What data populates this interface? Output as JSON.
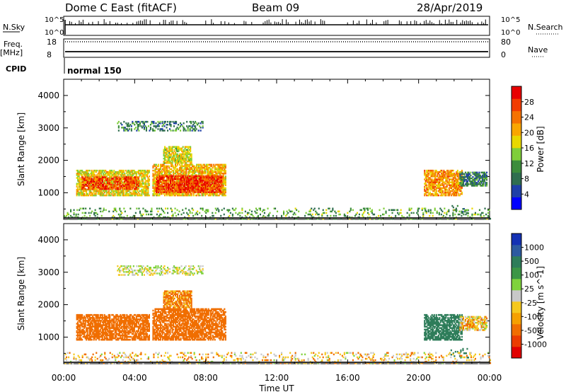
{
  "header": {
    "station": "Dome C East (fitACF)",
    "beam": "Beam 09",
    "date": "28/Apr/2019"
  },
  "top_panels": {
    "nsky_label": "N.Sky",
    "nsky_ticks": [
      "10^5",
      "10^0"
    ],
    "nsearch_label": "N.Search",
    "nsearch_ticks": [
      "10^5",
      "10^0"
    ],
    "freq_label": "Freq.",
    "freq_unit": "[MHz]",
    "freq_ticks": [
      "18",
      "8"
    ],
    "nave_label": "Nave",
    "nave_ticks": [
      "80",
      "0"
    ],
    "cpid_label": "CPID",
    "cpid_text": "normal 150"
  },
  "x_axis": {
    "label": "Time UT",
    "ticks": [
      "00:00",
      "04:00",
      "08:00",
      "12:00",
      "16:00",
      "20:00",
      "00:00"
    ],
    "range_hours": [
      0,
      24
    ]
  },
  "colors": {
    "power_scale": [
      "#0000ff",
      "#1e3fa8",
      "#2f6e4f",
      "#3c8c3c",
      "#7fce3a",
      "#e8d800",
      "#f9a600",
      "#f57200",
      "#f23c00",
      "#e80000"
    ],
    "velocity_scale": [
      "#1431b4",
      "#2d5aa0",
      "#2e7d5a",
      "#3c9646",
      "#7fd23c",
      "#c8c8c8",
      "#f5c81e",
      "#f5a000",
      "#f06e00",
      "#eb3c00",
      "#e10000"
    ]
  },
  "chart_data": [
    {
      "type": "heatmap",
      "title": "Power",
      "ylabel": "Slant Range [km]",
      "xlabel": "Time UT",
      "ylim": [
        180,
        4500
      ],
      "xlim": [
        0,
        24
      ],
      "y_ticks": [
        1000,
        2000,
        3000,
        4000
      ],
      "colorbar": {
        "label": "Power [dB]",
        "ticks": [
          "4",
          "8",
          "12",
          "16",
          "20",
          "24",
          "28"
        ],
        "range": [
          0,
          32
        ]
      },
      "regions": [
        {
          "t0": 0.7,
          "t1": 4.8,
          "r0": 900,
          "r1": 1700,
          "value": 18
        },
        {
          "t0": 1.0,
          "t1": 4.2,
          "r0": 1100,
          "r1": 1500,
          "value": 26
        },
        {
          "t0": 5.0,
          "t1": 9.1,
          "r0": 900,
          "r1": 1850,
          "value": 20
        },
        {
          "t0": 5.2,
          "t1": 8.9,
          "r0": 1000,
          "r1": 1500,
          "value": 28
        },
        {
          "t0": 5.6,
          "t1": 7.2,
          "r0": 1900,
          "r1": 2400,
          "value": 17
        },
        {
          "t0": 3.0,
          "t1": 7.8,
          "r0": 2900,
          "r1": 3200,
          "value": 9
        },
        {
          "t0": 20.3,
          "t1": 22.4,
          "r0": 900,
          "r1": 1700,
          "value": 22
        },
        {
          "t0": 22.3,
          "t1": 23.8,
          "r0": 1200,
          "r1": 1650,
          "value": 9
        },
        {
          "t0": 21.8,
          "t1": 22.8,
          "r0": 350,
          "r1": 650,
          "value": 8
        },
        {
          "t0": 0.0,
          "t1": 24.0,
          "r0": 180,
          "r1": 500,
          "value": 12
        }
      ]
    },
    {
      "type": "heatmap",
      "title": "Velocity",
      "ylabel": "Slant Range [km]",
      "xlabel": "Time UT",
      "ylim": [
        180,
        4500
      ],
      "xlim": [
        0,
        24
      ],
      "y_ticks": [
        1000,
        2000,
        3000,
        4000
      ],
      "colorbar": {
        "label": "Velocity [m s^-1]",
        "ticks": [
          "1000",
          "500",
          "100",
          "25",
          "-25",
          "-100",
          "-500",
          "-1000"
        ]
      },
      "regions": [
        {
          "t0": 0.7,
          "t1": 4.8,
          "r0": 900,
          "r1": 1700,
          "value": -300
        },
        {
          "t0": 5.0,
          "t1": 9.1,
          "r0": 900,
          "r1": 1850,
          "value": -300
        },
        {
          "t0": 5.6,
          "t1": 7.2,
          "r0": 1900,
          "r1": 2400,
          "value": -150
        },
        {
          "t0": 3.0,
          "t1": 7.8,
          "r0": 2900,
          "r1": 3200,
          "value": 0
        },
        {
          "t0": 20.3,
          "t1": 22.4,
          "r0": 900,
          "r1": 1700,
          "value": 300
        },
        {
          "t0": 22.3,
          "t1": 23.8,
          "r0": 1200,
          "r1": 1650,
          "value": -60
        },
        {
          "t0": 21.8,
          "t1": 22.8,
          "r0": 350,
          "r1": 650,
          "value": 200
        },
        {
          "t0": 0.0,
          "t1": 24.0,
          "r0": 180,
          "r1": 500,
          "value": -60
        }
      ]
    }
  ]
}
